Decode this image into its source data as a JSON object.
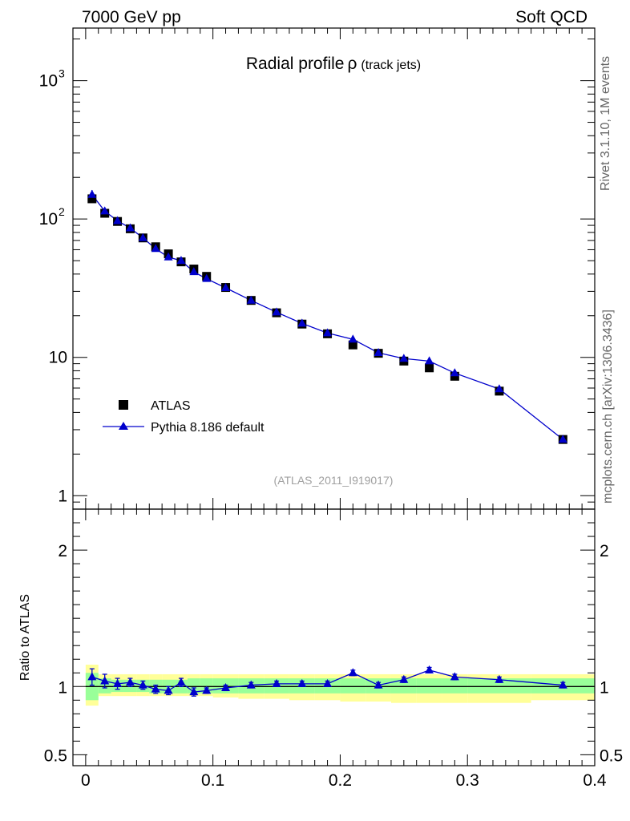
{
  "header": {
    "left": "7000 GeV pp",
    "right": "Soft QCD"
  },
  "side_labels": {
    "rivet": "Rivet 3.1.10,  1M events",
    "mcplots": "mcplots.cern.ch [arXiv:1306.3436]"
  },
  "chart_data": [
    {
      "type": "line",
      "panel": "main",
      "title": "Radial profile",
      "title_symbol": "ρ",
      "title_suffix": "(track jets)",
      "watermark": "(ATLAS_2011_I919017)",
      "yscale": "log",
      "xlim": [
        -0.01,
        0.4
      ],
      "ylim": [
        0.8,
        2400
      ],
      "y_tick_labels": [
        "1",
        "10",
        "10",
        "10"
      ],
      "y_tick_exponents": [
        "",
        "",
        "2",
        "3"
      ],
      "legend_placement": "bottom-left",
      "x": [
        0.005,
        0.015,
        0.025,
        0.035,
        0.045,
        0.055,
        0.065,
        0.075,
        0.085,
        0.095,
        0.11,
        0.13,
        0.15,
        0.17,
        0.19,
        0.21,
        0.23,
        0.25,
        0.27,
        0.29,
        0.325,
        0.375
      ],
      "series": [
        {
          "name": "ATLAS",
          "marker": "square",
          "color": "#000000",
          "values": [
            140,
            110,
            96,
            85,
            73,
            63,
            56,
            49,
            43.5,
            38.5,
            32,
            25.8,
            21,
            17.4,
            14.8,
            12.3,
            10.7,
            9.4,
            8.4,
            7.3,
            5.7,
            2.55
          ]
        },
        {
          "name": "Pythia 8.186 default",
          "marker": "triangle",
          "color": "#0000cc",
          "values": [
            150,
            114,
            97,
            86,
            73,
            61,
            53,
            50,
            41.5,
            37,
            31.8,
            25.8,
            21.2,
            17.6,
            15,
            13.5,
            10.8,
            9.8,
            9.4,
            7.7,
            5.9,
            2.55
          ],
          "errors": [
            12,
            6,
            4,
            3,
            2.5,
            2.2,
            2,
            2,
            1.8,
            1.5,
            1,
            0.8,
            0.6,
            0.5,
            0.4,
            0.4,
            0.3,
            0.3,
            0.3,
            0.2,
            0.2,
            0.1
          ]
        }
      ]
    },
    {
      "type": "line",
      "panel": "ratio",
      "ylabel": "Ratio to ATLAS",
      "ylim": [
        0.42,
        2.3
      ],
      "x_ticks": [
        0,
        0.1,
        0.2,
        0.3,
        0.4
      ],
      "x_tick_labels": [
        "0",
        "0.1",
        "0.2",
        "0.3",
        "0.4"
      ],
      "y_ticks": [
        0.5,
        1,
        2
      ],
      "y_tick_labels": [
        "0.5",
        "1",
        "2"
      ],
      "reference_line": 1,
      "bins": [
        [
          0,
          0.01
        ],
        [
          0.01,
          0.02
        ],
        [
          0.02,
          0.03
        ],
        [
          0.03,
          0.04
        ],
        [
          0.04,
          0.05
        ],
        [
          0.05,
          0.06
        ],
        [
          0.06,
          0.07
        ],
        [
          0.07,
          0.08
        ],
        [
          0.08,
          0.09
        ],
        [
          0.09,
          0.1
        ],
        [
          0.1,
          0.12
        ],
        [
          0.12,
          0.14
        ],
        [
          0.14,
          0.16
        ],
        [
          0.16,
          0.18
        ],
        [
          0.18,
          0.2
        ],
        [
          0.2,
          0.22
        ],
        [
          0.22,
          0.24
        ],
        [
          0.24,
          0.26
        ],
        [
          0.26,
          0.28
        ],
        [
          0.28,
          0.3
        ],
        [
          0.3,
          0.35
        ],
        [
          0.35,
          0.4
        ]
      ],
      "band_colors": {
        "stat": "#99ff99",
        "total": "#ffff99"
      },
      "stat_band": [
        [
          0.9,
          1.1
        ],
        [
          0.95,
          1.06
        ],
        [
          0.96,
          1.05
        ],
        [
          0.96,
          1.05
        ],
        [
          0.96,
          1.05
        ],
        [
          0.95,
          1.05
        ],
        [
          0.95,
          1.05
        ],
        [
          0.95,
          1.05
        ],
        [
          0.95,
          1.06
        ],
        [
          0.95,
          1.06
        ],
        [
          0.95,
          1.06
        ],
        [
          0.95,
          1.06
        ],
        [
          0.95,
          1.06
        ],
        [
          0.95,
          1.06
        ],
        [
          0.95,
          1.06
        ],
        [
          0.95,
          1.06
        ],
        [
          0.95,
          1.06
        ],
        [
          0.95,
          1.06
        ],
        [
          0.95,
          1.06
        ],
        [
          0.95,
          1.06
        ],
        [
          0.95,
          1.06
        ],
        [
          0.95,
          1.06
        ]
      ],
      "total_band": [
        [
          0.86,
          1.16
        ],
        [
          0.93,
          1.09
        ],
        [
          0.93,
          1.09
        ],
        [
          0.93,
          1.09
        ],
        [
          0.93,
          1.09
        ],
        [
          0.93,
          1.09
        ],
        [
          0.93,
          1.09
        ],
        [
          0.93,
          1.09
        ],
        [
          0.93,
          1.09
        ],
        [
          0.93,
          1.09
        ],
        [
          0.92,
          1.09
        ],
        [
          0.91,
          1.09
        ],
        [
          0.91,
          1.09
        ],
        [
          0.9,
          1.09
        ],
        [
          0.9,
          1.09
        ],
        [
          0.89,
          1.09
        ],
        [
          0.89,
          1.09
        ],
        [
          0.88,
          1.09
        ],
        [
          0.88,
          1.09
        ],
        [
          0.88,
          1.09
        ],
        [
          0.88,
          1.09
        ],
        [
          0.9,
          1.09
        ]
      ],
      "series": [
        {
          "name": "Pythia 8.186 default",
          "color": "#0000cc",
          "x": [
            0.005,
            0.015,
            0.025,
            0.035,
            0.045,
            0.055,
            0.065,
            0.075,
            0.085,
            0.095,
            0.11,
            0.13,
            0.15,
            0.17,
            0.19,
            0.21,
            0.23,
            0.25,
            0.27,
            0.29,
            0.325,
            0.375
          ],
          "values": [
            1.07,
            1.04,
            1.02,
            1.03,
            1.01,
            0.98,
            0.97,
            1.03,
            0.96,
            0.97,
            0.99,
            1.01,
            1.02,
            1.02,
            1.02,
            1.1,
            1.01,
            1.05,
            1.12,
            1.07,
            1.05,
            1.01
          ],
          "errors": [
            0.06,
            0.05,
            0.04,
            0.03,
            0.03,
            0.03,
            0.03,
            0.03,
            0.03,
            0.02,
            0.02,
            0.02,
            0.02,
            0.02,
            0.02,
            0.02,
            0.02,
            0.02,
            0.02,
            0.02,
            0.02,
            0.02
          ]
        }
      ]
    }
  ]
}
